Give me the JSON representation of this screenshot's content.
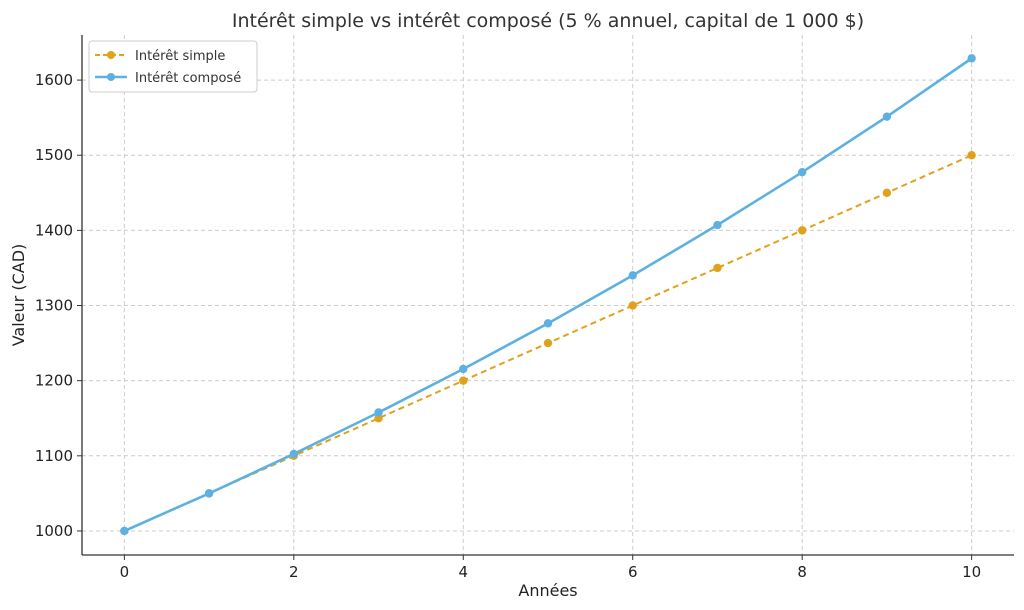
{
  "chart_data": {
    "type": "line",
    "title": "Intérêt simple vs intérêt composé (5 % annuel, capital de 1 000 $)",
    "xlabel": "Années",
    "ylabel": "Valeur (CAD)",
    "x": [
      0,
      1,
      2,
      3,
      4,
      5,
      6,
      7,
      8,
      9,
      10
    ],
    "xlim": [
      -0.5,
      10.5
    ],
    "ylim": [
      968,
      1660
    ],
    "xticks": [
      0,
      2,
      4,
      6,
      8,
      10
    ],
    "yticks": [
      1000,
      1100,
      1200,
      1300,
      1400,
      1500,
      1600
    ],
    "grid": true,
    "legend_position": "top-left",
    "series": [
      {
        "name": "Intérêt simple",
        "color": "#E0A21D",
        "line_style": "dashed",
        "marker": "circle",
        "values": [
          1000,
          1050,
          1100,
          1150,
          1200,
          1250,
          1300,
          1350,
          1400,
          1450,
          1500
        ]
      },
      {
        "name": "Intérêt composé",
        "color": "#5DB1E0",
        "line_style": "solid",
        "marker": "circle",
        "values": [
          1000,
          1050,
          1102.5,
          1157.63,
          1215.51,
          1276.28,
          1340.1,
          1407.1,
          1477.46,
          1551.33,
          1628.89
        ]
      }
    ]
  }
}
